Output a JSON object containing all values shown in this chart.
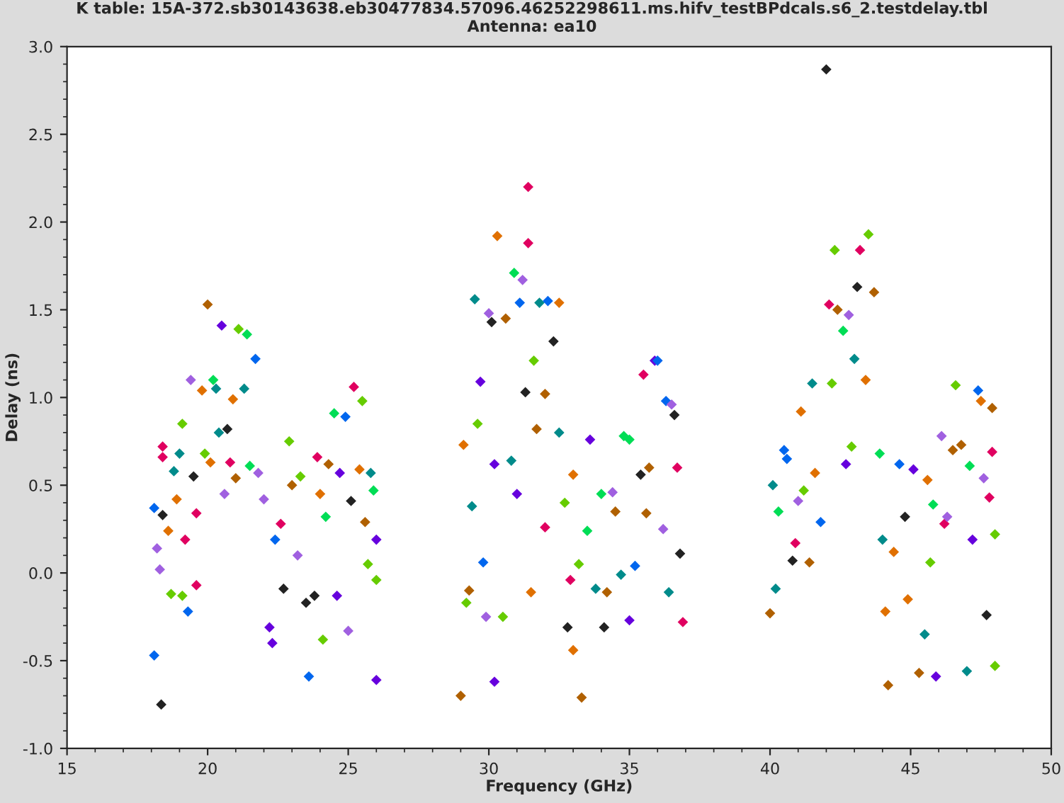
{
  "chart_data": {
    "type": "scatter",
    "title": "K table: 15A-372.sb30143638.eb30477834.57096.46252298611.ms.hifv_testBPdcals.s6_2.testdelay.tbl",
    "subtitle": "Antenna: ea10",
    "xlabel": "Frequency (GHz)",
    "ylabel": "Delay (ns)",
    "xlim": [
      15,
      50
    ],
    "xticks": [
      15,
      20,
      25,
      30,
      35,
      40,
      45,
      50
    ],
    "ylim": [
      -1.0,
      3.0
    ],
    "yticks": [
      {
        "value": -1.0,
        "label": "-1.0"
      },
      {
        "value": -0.5,
        "label": "-0.5"
      },
      {
        "value": 0.0,
        "label": "0.0"
      },
      {
        "value": 0.5,
        "label": "0.5"
      },
      {
        "value": 1.0,
        "label": "1.0"
      },
      {
        "value": 1.5,
        "label": "1.5"
      },
      {
        "value": 2.0,
        "label": "2.0"
      },
      {
        "value": 2.5,
        "label": "2.5"
      },
      {
        "value": 3.0,
        "label": "3.0"
      }
    ],
    "marker": "diamond",
    "grid": false,
    "legend": false,
    "series": [
      {
        "x": [
          18.1,
          18.35,
          18.1,
          18.4,
          18.2,
          18.3,
          18.4,
          18.4,
          18.6,
          18.7,
          18.8,
          18.9,
          19.0,
          19.1,
          19.1,
          19.2,
          19.3,
          19.4,
          19.5,
          19.6,
          19.6,
          19.8,
          19.9,
          20.0,
          20.1,
          20.2,
          20.3,
          20.4,
          20.5,
          20.6,
          20.7,
          20.8,
          20.9,
          21.0,
          21.1,
          21.3,
          21.4,
          21.5,
          21.7,
          21.8,
          22.0,
          22.2,
          22.3,
          22.4,
          22.6,
          22.7,
          22.9,
          23.0,
          23.2,
          23.3,
          23.5,
          23.6,
          23.8,
          23.9,
          24.0,
          24.1,
          24.2,
          24.3,
          24.5,
          24.6,
          24.7,
          24.9,
          25.0,
          25.1,
          25.2,
          25.4,
          25.5,
          25.6,
          25.7,
          25.8,
          25.9,
          26.0,
          26.0,
          26.0,
          29.0,
          29.1,
          29.2,
          29.3,
          29.4,
          29.5,
          29.6,
          29.7,
          29.8,
          29.9,
          30.0,
          30.1,
          30.2,
          30.2,
          30.3,
          30.5,
          30.6,
          30.8,
          30.9,
          31.0,
          31.1,
          31.2,
          31.3,
          31.4,
          31.4,
          31.5,
          31.6,
          31.7,
          31.8,
          32.0,
          32.0,
          32.1,
          32.3,
          32.5,
          32.5,
          32.7,
          32.8,
          32.9,
          33.0,
          33.0,
          33.2,
          33.3,
          33.5,
          33.6,
          33.8,
          34.0,
          34.1,
          34.2,
          34.4,
          34.5,
          34.7,
          34.8,
          35.0,
          35.0,
          35.2,
          35.4,
          35.5,
          35.6,
          35.7,
          35.9,
          36.0,
          36.2,
          36.3,
          36.4,
          36.5,
          36.6,
          36.7,
          36.8,
          36.9,
          40.0,
          40.1,
          40.2,
          40.3,
          40.5,
          40.6,
          40.8,
          40.9,
          41.0,
          41.1,
          41.2,
          41.4,
          41.5,
          41.6,
          41.8,
          42.0,
          42.1,
          42.2,
          42.3,
          42.4,
          42.6,
          42.7,
          42.8,
          42.9,
          43.0,
          43.1,
          43.2,
          43.4,
          43.5,
          43.7,
          43.9,
          44.0,
          44.1,
          44.2,
          44.4,
          44.6,
          44.8,
          44.9,
          45.1,
          45.3,
          45.5,
          45.6,
          45.7,
          45.8,
          45.9,
          46.1,
          46.2,
          46.3,
          46.5,
          46.6,
          46.8,
          47.0,
          47.1,
          47.2,
          47.4,
          47.5,
          47.6,
          47.7,
          47.8,
          47.9,
          48.0,
          48.0,
          47.9
        ],
        "values": [
          -0.47,
          -0.75,
          0.37,
          0.33,
          0.14,
          0.02,
          0.72,
          0.66,
          0.24,
          -0.12,
          0.58,
          0.42,
          0.68,
          0.85,
          -0.13,
          0.19,
          -0.22,
          1.1,
          0.55,
          0.34,
          -0.07,
          1.04,
          0.68,
          1.53,
          0.63,
          1.1,
          1.05,
          0.8,
          1.41,
          0.45,
          0.82,
          0.63,
          0.99,
          0.54,
          1.39,
          1.05,
          1.36,
          0.61,
          1.22,
          0.57,
          0.42,
          -0.31,
          -0.4,
          0.19,
          0.28,
          -0.09,
          0.75,
          0.5,
          0.1,
          0.55,
          -0.17,
          -0.59,
          -0.13,
          0.66,
          0.45,
          -0.38,
          0.32,
          0.62,
          0.91,
          -0.13,
          0.57,
          0.89,
          -0.33,
          0.41,
          1.06,
          0.59,
          0.98,
          0.29,
          0.05,
          0.57,
          0.47,
          -0.04,
          -0.61,
          0.19,
          -0.7,
          0.73,
          -0.17,
          -0.1,
          0.38,
          1.56,
          0.85,
          1.09,
          0.06,
          -0.25,
          1.48,
          1.43,
          0.62,
          -0.62,
          1.92,
          -0.25,
          1.45,
          0.64,
          1.71,
          0.45,
          1.54,
          1.67,
          1.03,
          2.2,
          1.88,
          -0.11,
          1.21,
          0.82,
          1.54,
          0.26,
          1.02,
          1.55,
          1.32,
          0.8,
          1.54,
          0.4,
          -0.31,
          -0.04,
          0.56,
          -0.44,
          0.05,
          -0.71,
          0.24,
          0.76,
          -0.09,
          0.45,
          -0.31,
          -0.11,
          0.46,
          0.35,
          -0.01,
          0.78,
          -0.27,
          0.76,
          0.04,
          0.56,
          1.13,
          0.34,
          0.6,
          1.21,
          1.21,
          0.25,
          0.98,
          -0.11,
          0.96,
          0.9,
          0.6,
          0.11,
          -0.28,
          -0.23,
          0.5,
          -0.09,
          0.35,
          0.7,
          0.65,
          0.07,
          0.17,
          0.41,
          0.92,
          0.47,
          0.06,
          1.08,
          0.57,
          0.29,
          2.87,
          1.53,
          1.08,
          1.84,
          1.5,
          1.38,
          0.62,
          1.47,
          0.72,
          1.22,
          1.63,
          1.84,
          1.1,
          1.93,
          1.6,
          0.68,
          0.19,
          -0.22,
          -0.64,
          0.12,
          0.62,
          0.32,
          -0.15,
          0.59,
          -0.57,
          -0.35,
          0.53,
          0.06,
          0.39,
          -0.59,
          0.78,
          0.28,
          0.32,
          0.7,
          1.07,
          0.73,
          -0.56,
          0.61,
          0.19,
          1.04,
          0.98,
          0.54,
          -0.24,
          0.43,
          0.69,
          0.22,
          -0.53,
          0.94
        ],
        "colors": [
          "#0066ee",
          "#222222",
          "#0066ee",
          "#222222",
          "#a060e0",
          "#a060e0",
          "#e00060",
          "#e00060",
          "#e07000",
          "#66cc00",
          "#008b8b",
          "#e07000",
          "#008b8b",
          "#66cc00",
          "#66cc00",
          "#e00060",
          "#0066ee",
          "#a060e0",
          "#222222",
          "#e00060",
          "#e00060",
          "#e07000",
          "#66cc00",
          "#b06000",
          "#e07000",
          "#00dd55",
          "#008b8b",
          "#008b8b",
          "#6600dd",
          "#a060e0",
          "#222222",
          "#e00060",
          "#e07000",
          "#b06000",
          "#66cc00",
          "#008b8b",
          "#00dd55",
          "#00dd55",
          "#0066ee",
          "#a060e0",
          "#a060e0",
          "#6600dd",
          "#6600dd",
          "#0066ee",
          "#e00060",
          "#222222",
          "#66cc00",
          "#b06000",
          "#a060e0",
          "#66cc00",
          "#222222",
          "#0066ee",
          "#222222",
          "#e00060",
          "#e07000",
          "#66cc00",
          "#00dd55",
          "#b06000",
          "#00dd55",
          "#6600dd",
          "#6600dd",
          "#0066ee",
          "#a060e0",
          "#222222",
          "#e00060",
          "#e07000",
          "#66cc00",
          "#b06000",
          "#66cc00",
          "#008b8b",
          "#00dd55",
          "#66cc00",
          "#6600dd",
          "#6600dd",
          "#b06000",
          "#e07000",
          "#66cc00",
          "#b06000",
          "#008b8b",
          "#008b8b",
          "#66cc00",
          "#6600dd",
          "#0066ee",
          "#a060e0",
          "#a060e0",
          "#222222",
          "#6600dd",
          "#6600dd",
          "#e07000",
          "#66cc00",
          "#b06000",
          "#008b8b",
          "#00dd55",
          "#6600dd",
          "#0066ee",
          "#a060e0",
          "#222222",
          "#e00060",
          "#e00060",
          "#e07000",
          "#66cc00",
          "#b06000",
          "#008b8b",
          "#e00060",
          "#b06000",
          "#0066ee",
          "#222222",
          "#008b8b",
          "#e07000",
          "#66cc00",
          "#222222",
          "#e00060",
          "#e07000",
          "#e07000",
          "#66cc00",
          "#b06000",
          "#00dd55",
          "#6600dd",
          "#008b8b",
          "#00dd55",
          "#222222",
          "#b06000",
          "#a060e0",
          "#b06000",
          "#008b8b",
          "#00dd55",
          "#6600dd",
          "#00dd55",
          "#0066ee",
          "#222222",
          "#e00060",
          "#b06000",
          "#b06000",
          "#6600dd",
          "#0066ee",
          "#a060e0",
          "#0066ee",
          "#008b8b",
          "#a060e0",
          "#222222",
          "#e00060",
          "#222222",
          "#e00060",
          "#b06000",
          "#008b8b",
          "#008b8b",
          "#00dd55",
          "#0066ee",
          "#0066ee",
          "#222222",
          "#e00060",
          "#a060e0",
          "#e07000",
          "#66cc00",
          "#b06000",
          "#008b8b",
          "#e07000",
          "#0066ee",
          "#222222",
          "#e00060",
          "#66cc00",
          "#66cc00",
          "#b06000",
          "#00dd55",
          "#6600dd",
          "#a060e0",
          "#66cc00",
          "#008b8b",
          "#222222",
          "#e00060",
          "#e07000",
          "#66cc00",
          "#b06000",
          "#00dd55",
          "#008b8b",
          "#e07000",
          "#b06000",
          "#e07000",
          "#0066ee",
          "#222222",
          "#e07000",
          "#6600dd",
          "#b06000",
          "#008b8b",
          "#e07000",
          "#66cc00",
          "#00dd55",
          "#6600dd",
          "#a060e0",
          "#e00060",
          "#a060e0",
          "#b06000",
          "#66cc00",
          "#b06000",
          "#008b8b",
          "#00dd55",
          "#6600dd",
          "#0066ee",
          "#e07000",
          "#a060e0",
          "#222222",
          "#e00060",
          "#e00060",
          "#66cc00",
          "#66cc00",
          "#b06000"
        ]
      }
    ]
  }
}
